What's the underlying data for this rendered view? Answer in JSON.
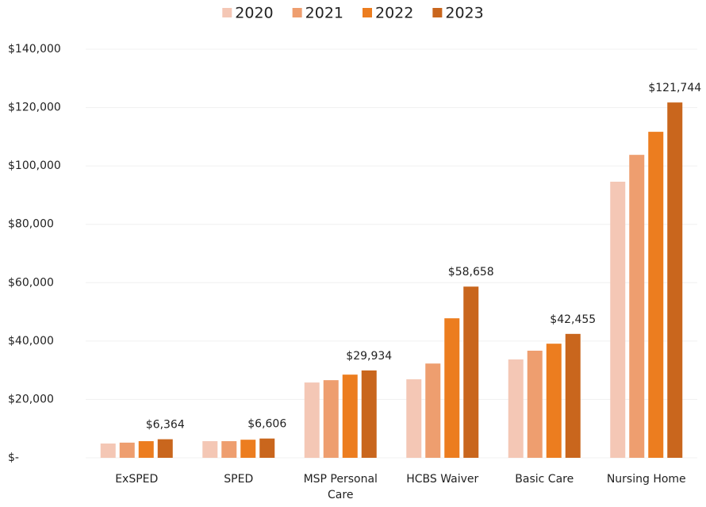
{
  "chart_data": {
    "type": "bar",
    "categories": [
      "ExSPED",
      "SPED",
      "MSP Personal Care",
      "HCBS Waiver",
      "Basic Care",
      "Nursing Home"
    ],
    "series": [
      {
        "name": "2020",
        "color": "#f4c7b5",
        "values": [
          4900,
          5700,
          25800,
          26900,
          33700,
          94600
        ]
      },
      {
        "name": "2021",
        "color": "#ee9e6f",
        "values": [
          5200,
          5700,
          26600,
          32300,
          36700,
          103800
        ]
      },
      {
        "name": "2022",
        "color": "#ec7d1f",
        "values": [
          5700,
          6200,
          28500,
          47800,
          39100,
          111700
        ]
      },
      {
        "name": "2023",
        "color": "#c9661d",
        "values": [
          6364,
          6606,
          29934,
          58658,
          42455,
          121744
        ],
        "value_labels": [
          "$6,364",
          "$6,606",
          "$29,934",
          "$58,658",
          "$42,455",
          "$121,744"
        ]
      }
    ],
    "ylim": [
      0,
      140000
    ],
    "yticks": [
      {
        "value": 0,
        "label": "$-"
      },
      {
        "value": 20000,
        "label": "$20,000"
      },
      {
        "value": 40000,
        "label": "$40,000"
      },
      {
        "value": 60000,
        "label": "$60,000"
      },
      {
        "value": 80000,
        "label": "$80,000"
      },
      {
        "value": 100000,
        "label": "$100,000"
      },
      {
        "value": 120000,
        "label": "$120,000"
      },
      {
        "value": 140000,
        "label": "$140,000"
      }
    ],
    "grid": true,
    "legend": "top"
  }
}
